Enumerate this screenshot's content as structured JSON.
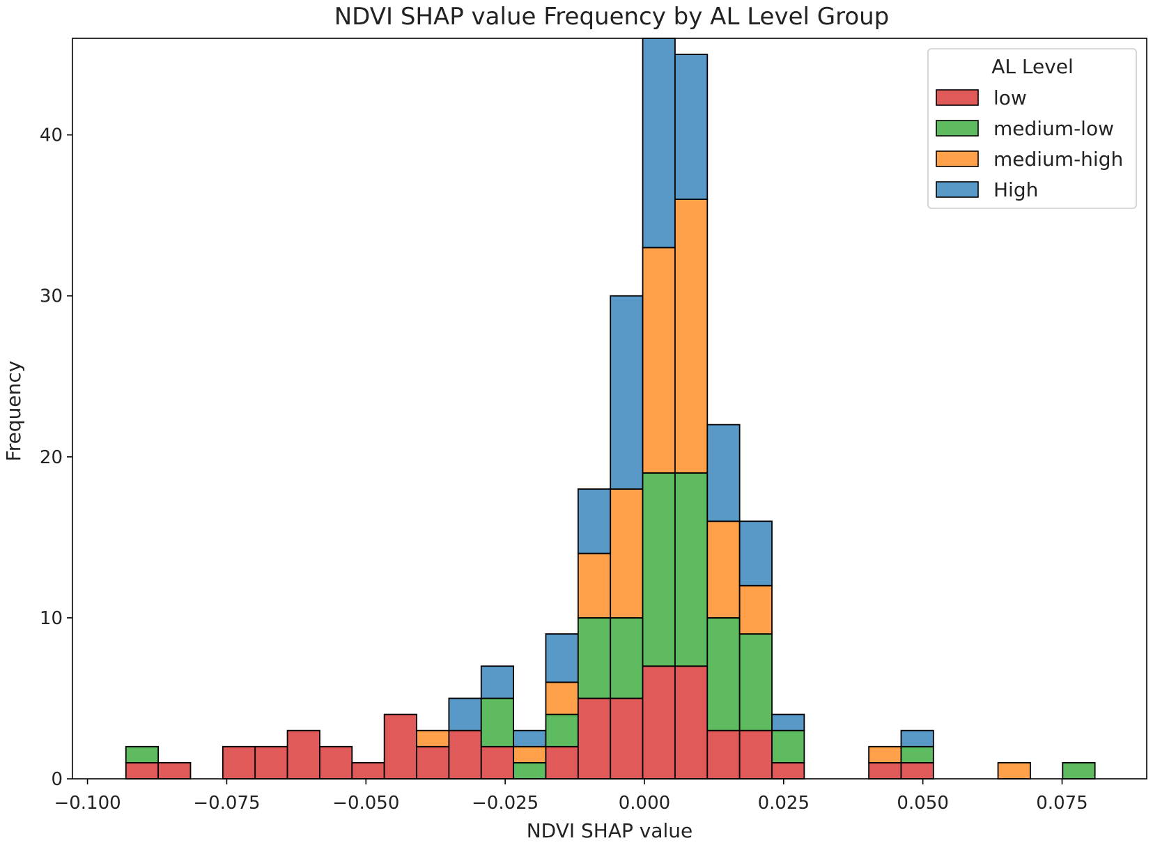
{
  "chart_data": {
    "type": "bar",
    "stacked": true,
    "title": "NDVI SHAP value Frequency by AL Level Group",
    "xlabel": "NDVI SHAP value",
    "ylabel": "Frequency",
    "xlim": [
      -0.1027,
      0.0902
    ],
    "ylim": [
      0,
      46
    ],
    "x_ticks": [
      -0.1,
      -0.075,
      -0.05,
      -0.025,
      0.0,
      0.025,
      0.05,
      0.075
    ],
    "x_tick_labels": [
      "−0.100",
      "−0.075",
      "−0.050",
      "−0.025",
      "0.000",
      "0.025",
      "0.050",
      "0.075"
    ],
    "y_ticks": [
      0,
      10,
      20,
      30,
      40
    ],
    "y_tick_labels": [
      "0",
      "10",
      "20",
      "30",
      "40"
    ],
    "bin_edges": [
      -0.0931,
      -0.0873,
      -0.0815,
      -0.0757,
      -0.0699,
      -0.0641,
      -0.0583,
      -0.0525,
      -0.0467,
      -0.0409,
      -0.0351,
      -0.0293,
      -0.0235,
      -0.0177,
      -0.0119,
      -0.0061,
      -0.0003,
      0.0055,
      0.0113,
      0.0171,
      0.0229,
      0.0287,
      0.0345,
      0.0403,
      0.0461,
      0.0519,
      0.0577,
      0.0635,
      0.0693,
      0.0751,
      0.0809
    ],
    "series": [
      {
        "name": "low",
        "color": "#e05a5a",
        "values": [
          1,
          1,
          0,
          2,
          2,
          3,
          2,
          1,
          4,
          2,
          3,
          2,
          0,
          2,
          5,
          5,
          7,
          7,
          3,
          3,
          1,
          0,
          0,
          1,
          1,
          0,
          0,
          0,
          0,
          0
        ]
      },
      {
        "name": "medium-low",
        "color": "#5fbb5f",
        "values": [
          1,
          0,
          0,
          0,
          0,
          0,
          0,
          0,
          0,
          0,
          0,
          3,
          1,
          2,
          5,
          5,
          12,
          12,
          7,
          6,
          2,
          0,
          0,
          0,
          1,
          0,
          0,
          0,
          0,
          1
        ]
      },
      {
        "name": "medium-high",
        "color": "#ffa04a",
        "values": [
          0,
          0,
          0,
          0,
          0,
          0,
          0,
          0,
          0,
          1,
          0,
          0,
          1,
          2,
          4,
          8,
          14,
          17,
          6,
          3,
          0,
          0,
          0,
          1,
          0,
          0,
          0,
          1,
          0,
          0
        ]
      },
      {
        "name": "High",
        "color": "#5899c8",
        "values": [
          0,
          0,
          0,
          0,
          0,
          0,
          0,
          0,
          0,
          0,
          2,
          2,
          1,
          3,
          4,
          12,
          13,
          9,
          6,
          4,
          1,
          0,
          0,
          0,
          1,
          0,
          0,
          0,
          0,
          0
        ]
      }
    ],
    "legend": {
      "title": "AL Level",
      "position": "top-right"
    }
  }
}
